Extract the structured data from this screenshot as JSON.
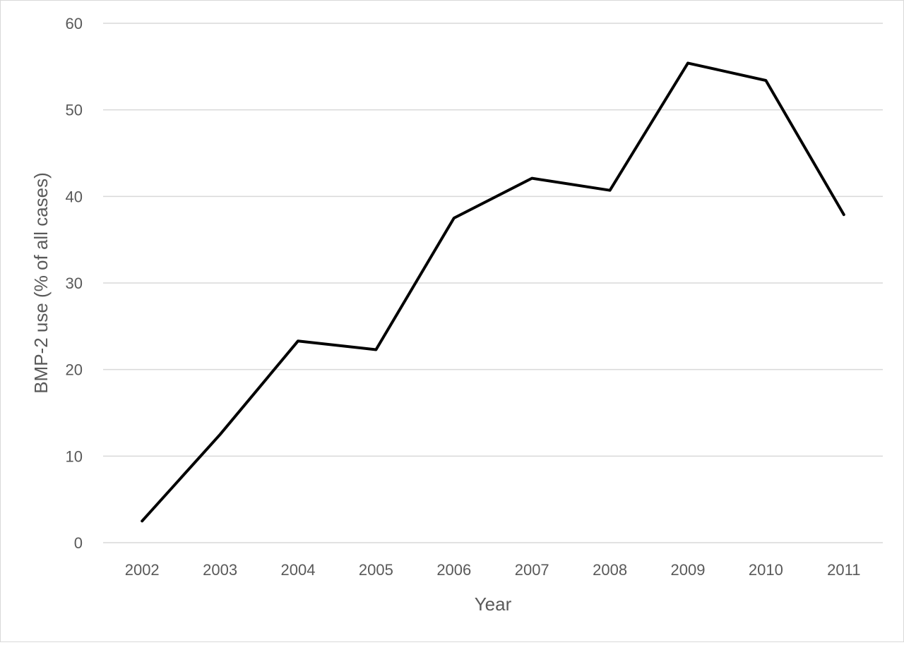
{
  "chart_data": {
    "type": "line",
    "title": "",
    "xlabel": "Year",
    "ylabel": "BMP-2 use (% of all cases)",
    "categories": [
      "2002",
      "2003",
      "2004",
      "2005",
      "2006",
      "2007",
      "2008",
      "2009",
      "2010",
      "2011"
    ],
    "series": [
      {
        "values": [
          2.5,
          12.5,
          23.3,
          22.3,
          37.5,
          42.1,
          40.7,
          55.4,
          53.4,
          37.9
        ],
        "color": "#000000"
      }
    ],
    "ylim": [
      0,
      60
    ],
    "yticks": [
      "0",
      "10",
      "20",
      "30",
      "40",
      "50",
      "60"
    ],
    "grid": true,
    "legend": "none",
    "colors": {
      "line": "#000000",
      "grid": "#d9d9d9",
      "text": "#595959",
      "border": "#d9d9d9"
    }
  }
}
